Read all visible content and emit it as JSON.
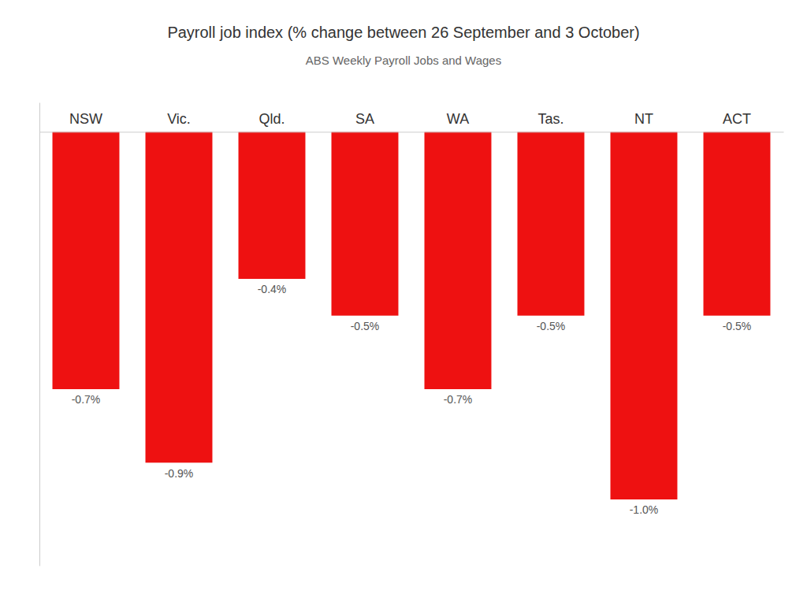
{
  "chart_data": {
    "type": "bar",
    "title": "Payroll job index (% change between 26 September and 3 October)",
    "subtitle": "ABS Weekly Payroll Jobs and Wages",
    "categories": [
      "NSW",
      "Vic.",
      "Qld.",
      "SA",
      "WA",
      "Tas.",
      "NT",
      "ACT"
    ],
    "values": [
      -0.7,
      -0.9,
      -0.4,
      -0.5,
      -0.7,
      -0.5,
      -1.0,
      -0.5
    ],
    "value_labels": [
      "-0.7%",
      "-0.9%",
      "-0.4%",
      "-0.5%",
      "-0.7%",
      "-0.5%",
      "-1.0%",
      "-0.5%"
    ],
    "data_labels": true,
    "color": "#ee1111",
    "ylim": [
      -1.18,
      0.08
    ],
    "tick_labels": "x"
  }
}
